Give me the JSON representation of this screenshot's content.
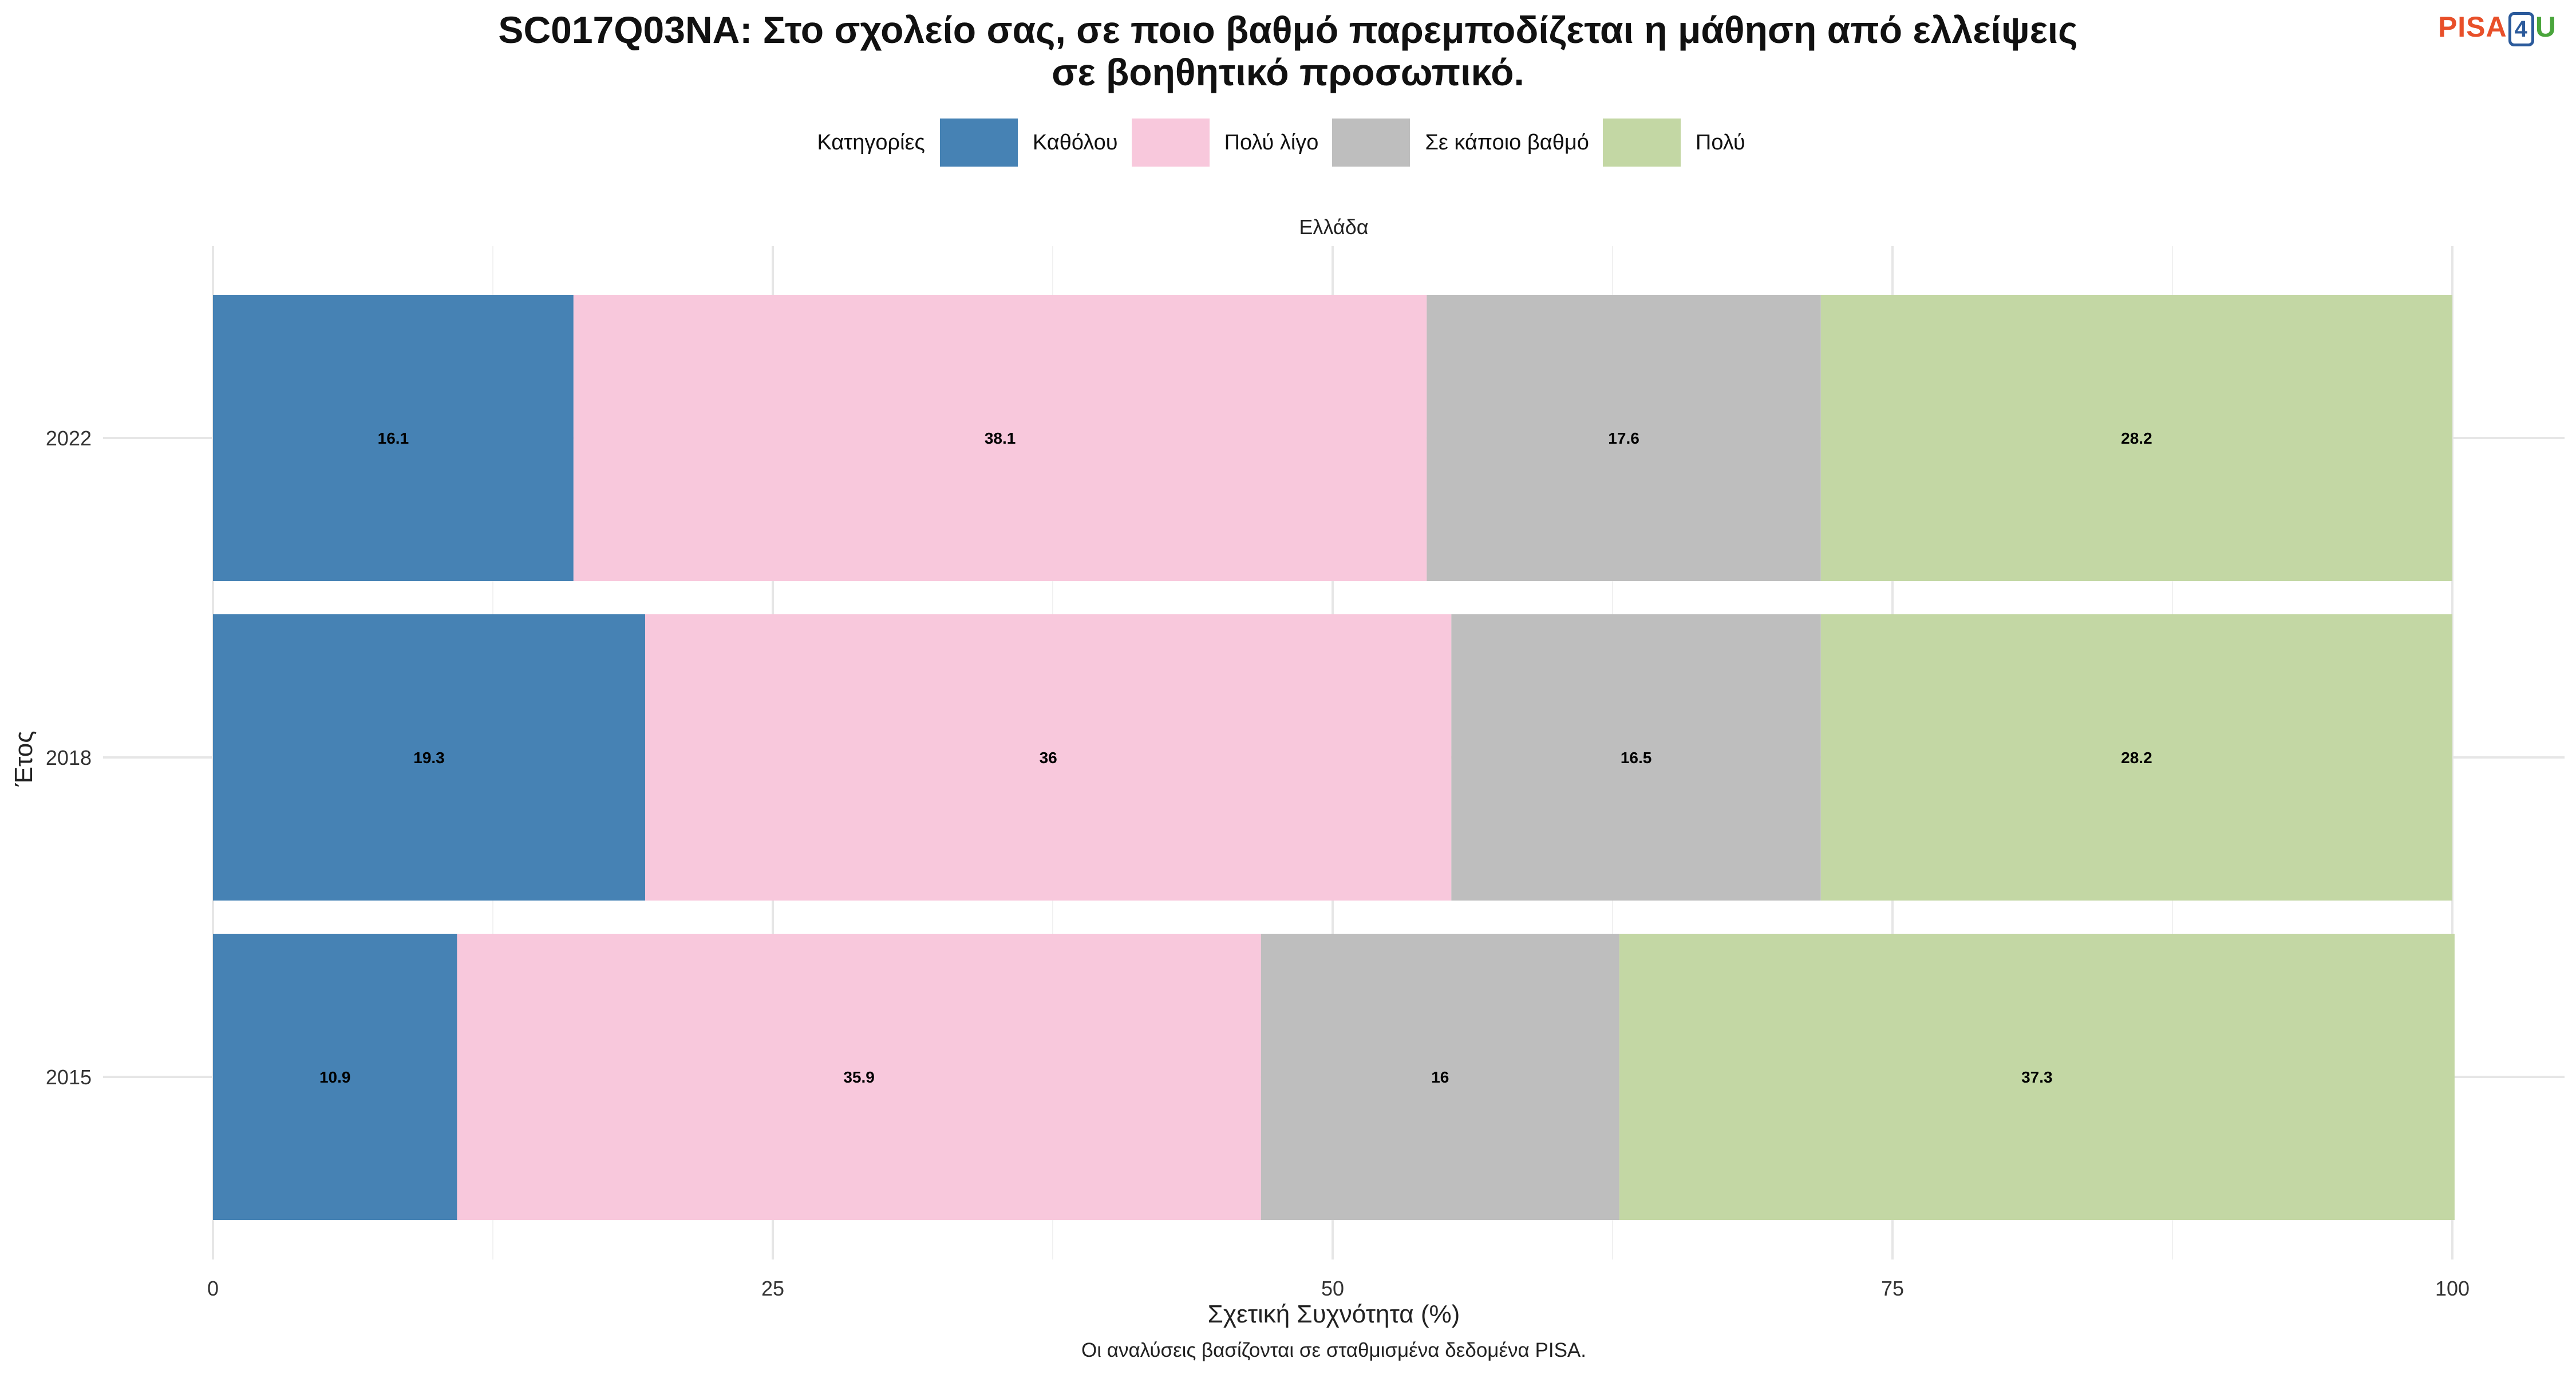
{
  "title": {
    "line1": "SC017Q03NA: Στο σχολείο σας, σε ποιο βαθμό παρεμποδίζεται η μάθηση από ελλείψεις",
    "line2": "σε βοηθητικό προσωπικό."
  },
  "logo": {
    "p": "PISA",
    "four": "4",
    "u": "U"
  },
  "legend": {
    "title": "Κατηγορίες",
    "items": [
      {
        "label": "Καθόλου",
        "color": "#4682b4"
      },
      {
        "label": "Πολύ λίγο",
        "color": "#f8c8dc"
      },
      {
        "label": "Σε κάποιο βαθμό",
        "color": "#bebebe"
      },
      {
        "label": "Πολύ",
        "color": "#c3d7a4"
      }
    ]
  },
  "facet_label": "Ελλάδα",
  "caption": "Οι αναλύσεις βασίζονται σε σταθμισμένα δεδομένα PISA.",
  "chart_data": {
    "type": "bar",
    "orientation": "horizontal",
    "stacked": true,
    "title": "SC017Q03NA: Στο σχολείο σας, σε ποιο βαθμό παρεμποδίζεται η μάθηση από ελλείψεις σε βοηθητικό προσωπικό.",
    "xlabel": "Σχετική Συχνότητα (%)",
    "ylabel": "Έτος",
    "xlim": [
      0,
      100
    ],
    "xticks": [
      0,
      25,
      50,
      75,
      100
    ],
    "categories": [
      "2022",
      "2018",
      "2015"
    ],
    "series": [
      {
        "name": "Καθόλου",
        "values": [
          16.1,
          19.3,
          10.9
        ],
        "labels": [
          "16.1",
          "19.3",
          "10.9"
        ]
      },
      {
        "name": "Πολύ λίγο",
        "values": [
          38.1,
          36,
          35.9
        ],
        "labels": [
          "38.1",
          "36",
          "35.9"
        ]
      },
      {
        "name": "Σε κάποιο βαθμό",
        "values": [
          17.6,
          16.5,
          16
        ],
        "labels": [
          "17.6",
          "16.5",
          "16"
        ]
      },
      {
        "name": "Πολύ",
        "values": [
          28.2,
          28.2,
          37.3
        ],
        "labels": [
          "28.2",
          "28.2",
          "37.3"
        ]
      }
    ],
    "grid": true,
    "legend_position": "top"
  }
}
